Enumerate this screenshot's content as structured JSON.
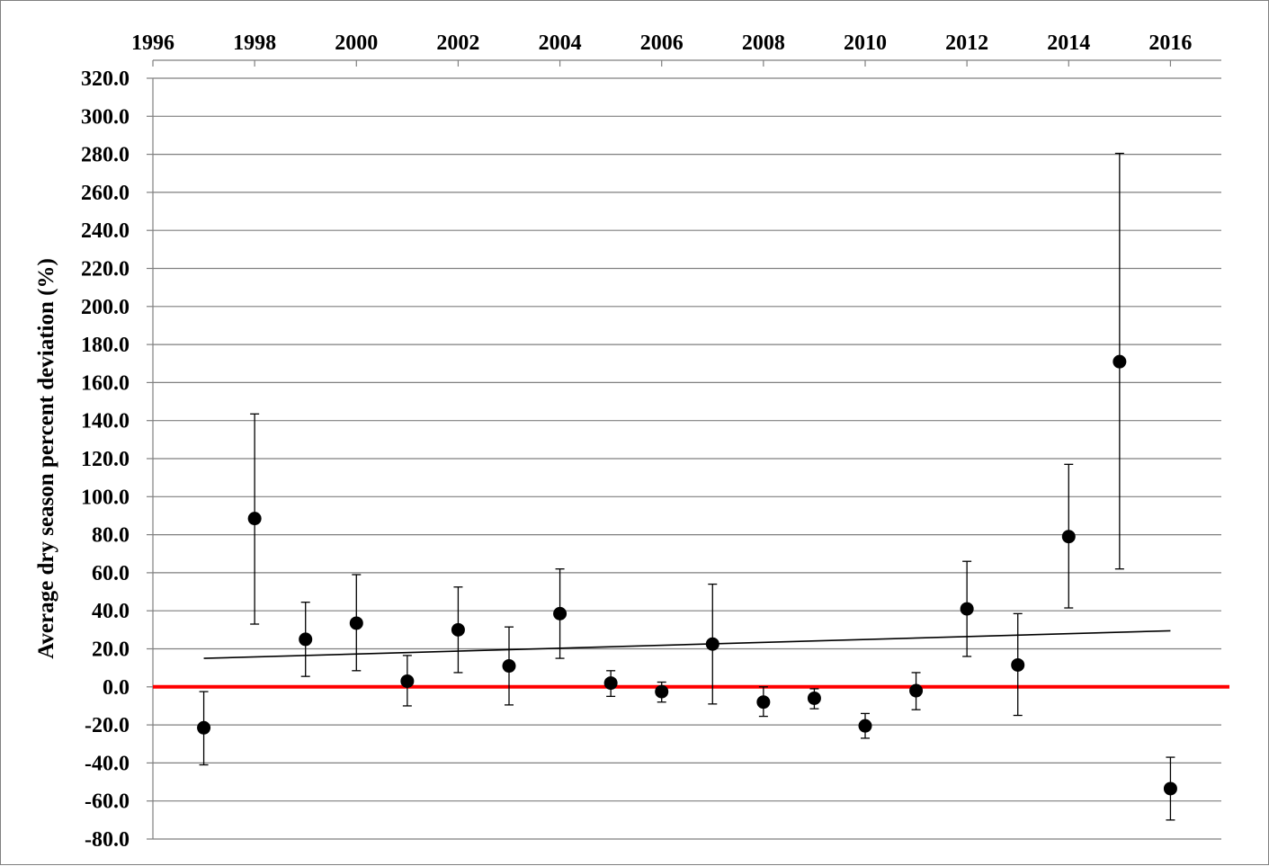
{
  "chart_data": {
    "type": "scatter",
    "title": "",
    "xlabel": "",
    "ylabel": "Average dry season percent deviation (%)",
    "x_axis_position": "top",
    "xlim": [
      1996,
      2017
    ],
    "ylim": [
      -80,
      320
    ],
    "x_ticks": [
      "1996",
      "1998",
      "2000",
      "2002",
      "2004",
      "2006",
      "2008",
      "2010",
      "2012",
      "2014",
      "2016"
    ],
    "y_ticks": [
      "-80.0",
      "-60.0",
      "-40.0",
      "-20.0",
      "0.0",
      "20.0",
      "40.0",
      "60.0",
      "80.0",
      "100.0",
      "120.0",
      "140.0",
      "160.0",
      "180.0",
      "200.0",
      "220.0",
      "240.0",
      "260.0",
      "280.0",
      "300.0",
      "320.0"
    ],
    "grid": "horizontal",
    "legend": "none",
    "series": [
      {
        "color": "#000000",
        "points": [
          {
            "x": 1997,
            "y": -21.5,
            "err_low": -41,
            "err_high": -2.5
          },
          {
            "x": 1998,
            "y": 88.5,
            "err_low": 33,
            "err_high": 143.5
          },
          {
            "x": 1999,
            "y": 25,
            "err_low": 5.5,
            "err_high": 44.5
          },
          {
            "x": 2000,
            "y": 33.5,
            "err_low": 8.5,
            "err_high": 59
          },
          {
            "x": 2001,
            "y": 3,
            "err_low": -10,
            "err_high": 16.5
          },
          {
            "x": 2002,
            "y": 30,
            "err_low": 7.5,
            "err_high": 52.5
          },
          {
            "x": 2003,
            "y": 11,
            "err_low": -9.5,
            "err_high": 31.5
          },
          {
            "x": 2004,
            "y": 38.5,
            "err_low": 15,
            "err_high": 62
          },
          {
            "x": 2005,
            "y": 2,
            "err_low": -5,
            "err_high": 8.5
          },
          {
            "x": 2006,
            "y": -2.5,
            "err_low": -8,
            "err_high": 2.5
          },
          {
            "x": 2007,
            "y": 22.5,
            "err_low": -9,
            "err_high": 54
          },
          {
            "x": 2008,
            "y": -8,
            "err_low": -15.5,
            "err_high": 0
          },
          {
            "x": 2009,
            "y": -6,
            "err_low": -11.5,
            "err_high": -1
          },
          {
            "x": 2010,
            "y": -20.5,
            "err_low": -27,
            "err_high": -14
          },
          {
            "x": 2011,
            "y": -2,
            "err_low": -12,
            "err_high": 7.5
          },
          {
            "x": 2012,
            "y": 41,
            "err_low": 16,
            "err_high": 66
          },
          {
            "x": 2013,
            "y": 11.5,
            "err_low": -15,
            "err_high": 38.5
          },
          {
            "x": 2014,
            "y": 79,
            "err_low": 41.5,
            "err_high": 117
          },
          {
            "x": 2015,
            "y": 171,
            "err_low": 62,
            "err_high": 280.5
          },
          {
            "x": 2016,
            "y": -53.5,
            "err_low": -70,
            "err_high": -37
          }
        ]
      }
    ],
    "trendline": {
      "color": "#000000",
      "x": [
        1997,
        2016
      ],
      "y": [
        15,
        29.5
      ]
    },
    "reference_line": {
      "color": "#ff0000",
      "y": 0
    }
  }
}
